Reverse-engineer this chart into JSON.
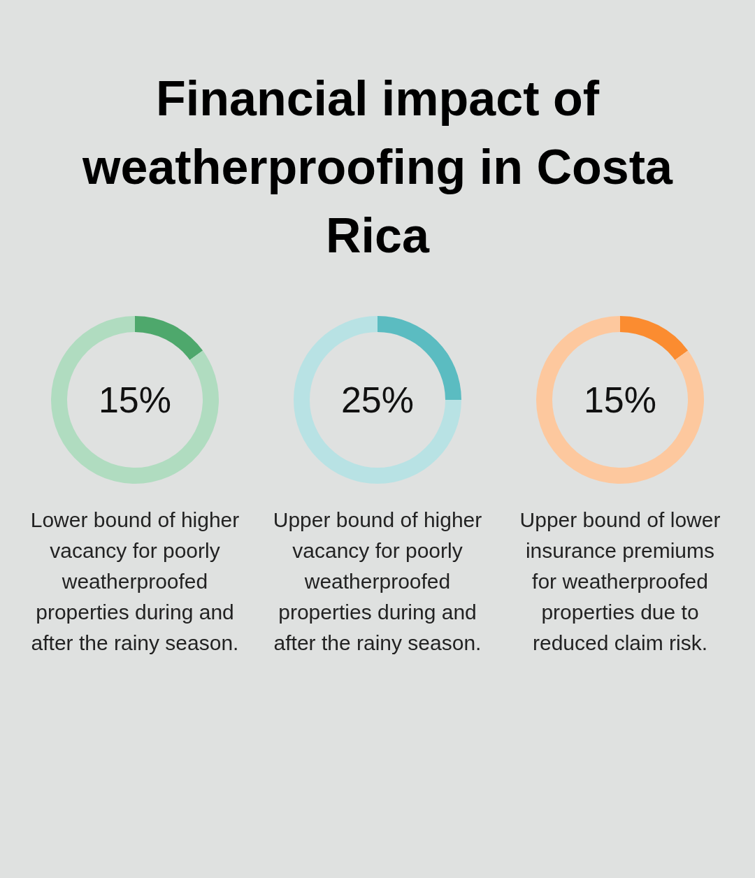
{
  "chart_data": [
    {
      "type": "donut",
      "title": "Financial impact of weatherproofing in Costa Rica",
      "categories": [
        null,
        null
      ],
      "values": [
        15,
        85
      ],
      "colors": [
        "#4ea86c",
        "#b0dcc0"
      ],
      "value_labels": [
        "15%",
        null
      ],
      "annotations": [
        "Lower bound of higher vacancy for poorly weatherproofed properties during and after the rainy season."
      ]
    },
    {
      "type": "donut",
      "categories": [
        null,
        null
      ],
      "values": [
        25,
        75
      ],
      "colors": [
        "#5bbcc1",
        "#b8e2e4"
      ],
      "value_labels": [
        "25%",
        null
      ],
      "annotations": [
        "Upper bound of higher vacancy for poorly weatherproofed properties during and after the rainy season."
      ]
    },
    {
      "type": "donut",
      "categories": [
        null,
        null
      ],
      "values": [
        15,
        85
      ],
      "colors": [
        "#fb8c30",
        "#fdc89e"
      ],
      "value_labels": [
        "15%",
        null
      ],
      "annotations": [
        "Upper bound of lower insurance premiums for weatherproofed properties due to reduced claim risk."
      ]
    }
  ]
}
